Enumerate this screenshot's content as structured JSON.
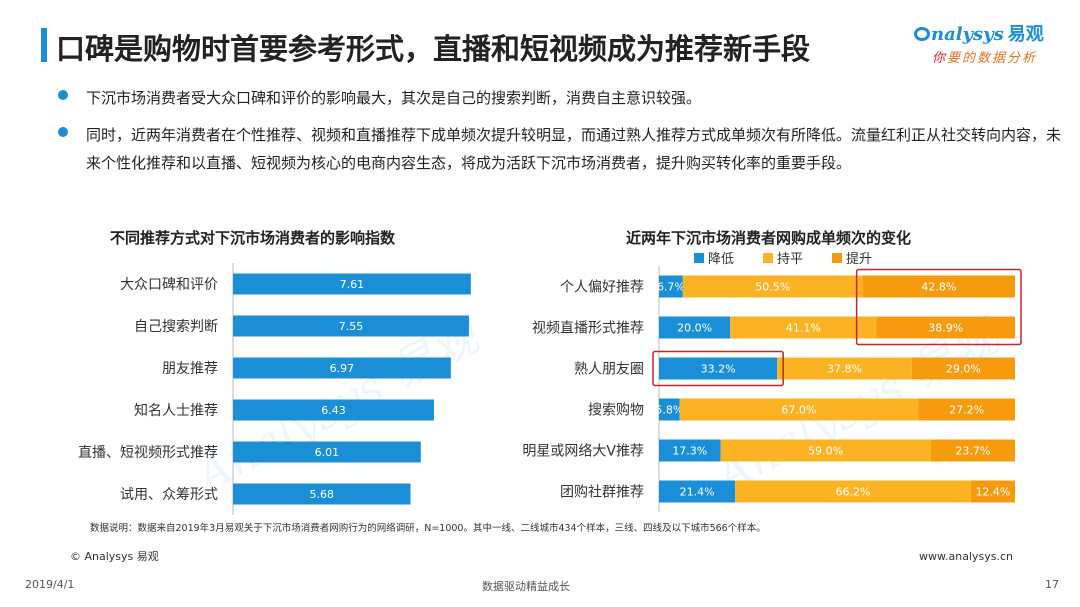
{
  "header": {
    "title": "口碑是购物时首要参考形式，直播和短视频成为推荐新手段"
  },
  "logo": {
    "brand_en": "nalysys",
    "brand_cn": "易观",
    "tagline_lead": "你",
    "tagline_rest": "要的数据分析",
    "watermark": "易观"
  },
  "bullets": [
    "下沉市场消费者受大众口碑和评价的影响最大，其次是自己的搜索判断，消费自主意识较强。",
    "同时，近两年消费者在个性推荐、视频和直播推荐下成单频次提升较明显，而通过熟人推荐方式成单频次有所降低。流量红利正从社交转向内容，未来个性化推荐和以直播、短视频为核心的电商内容生态，将成为活跃下沉市场消费者，提升购买转化率的重要手段。"
  ],
  "colors": {
    "accent": "#1a8fd8",
    "neutral": "#fbb324",
    "increase": "#f79b0e",
    "highlight_box": "#c0282d"
  },
  "chart_data": [
    {
      "type": "bar",
      "orientation": "horizontal",
      "title": "不同推荐方式对下沉市场消费者的影响指数",
      "categories": [
        "大众口碑和评价",
        "自己搜索判断",
        "朋友推荐",
        "知名人士推荐",
        "直播、短视频形式推荐",
        "试用、众筹形式"
      ],
      "values": [
        7.61,
        7.55,
        6.97,
        6.43,
        6.01,
        5.68
      ],
      "labels": [
        "7.61",
        "7.55",
        "6.97",
        "6.43",
        "6.01",
        "5.68"
      ],
      "color": "#1a8fd8",
      "xlim": [
        0,
        8
      ]
    },
    {
      "type": "bar",
      "orientation": "horizontal",
      "stacked": "100%",
      "title": "近两年下沉市场消费者网购成单频次的变化",
      "categories": [
        "个人偏好推荐",
        "视频直播形式推荐",
        "熟人朋友圈",
        "搜索购物",
        "明星或网络大V推荐",
        "团购社群推荐"
      ],
      "legend_position": "top",
      "series": [
        {
          "name": "降低",
          "color": "#1a8fd8",
          "values": [
            6.7,
            20.0,
            33.2,
            5.8,
            17.3,
            21.4
          ],
          "labels": [
            "6.7%",
            "20.0%",
            "33.2%",
            "5.8%",
            "17.3%",
            "21.4%"
          ]
        },
        {
          "name": "持平",
          "color": "#fbb324",
          "values": [
            50.5,
            41.1,
            37.8,
            67.0,
            59.0,
            66.2
          ],
          "labels": [
            "50.5%",
            "41.1%",
            "37.8%",
            "67.0%",
            "59.0%",
            "66.2%"
          ]
        },
        {
          "name": "提升",
          "color": "#f79b0e",
          "values": [
            42.8,
            38.9,
            29.0,
            27.2,
            23.7,
            12.4
          ],
          "labels": [
            "42.8%",
            "38.9%",
            "29.0%",
            "27.2%",
            "23.7%",
            "12.4%"
          ]
        }
      ],
      "highlights": [
        {
          "series": "提升",
          "categories": [
            "个人偏好推荐",
            "视频直播形式推荐"
          ]
        },
        {
          "series": "降低",
          "categories": [
            "熟人朋友圈"
          ]
        }
      ]
    }
  ],
  "note": "数据说明：数据来自2019年3月易观关于下沉市场消费者网购行为的网络调研，N=1000。其中一线、二线城市434个样本，三线、四线及以下城市566个样本。",
  "footer": {
    "copyright": "© Analysys 易观",
    "website": "www.analysys.cn",
    "date": "2019/4/1",
    "slogan": "数据驱动精益成长",
    "page": "17"
  }
}
